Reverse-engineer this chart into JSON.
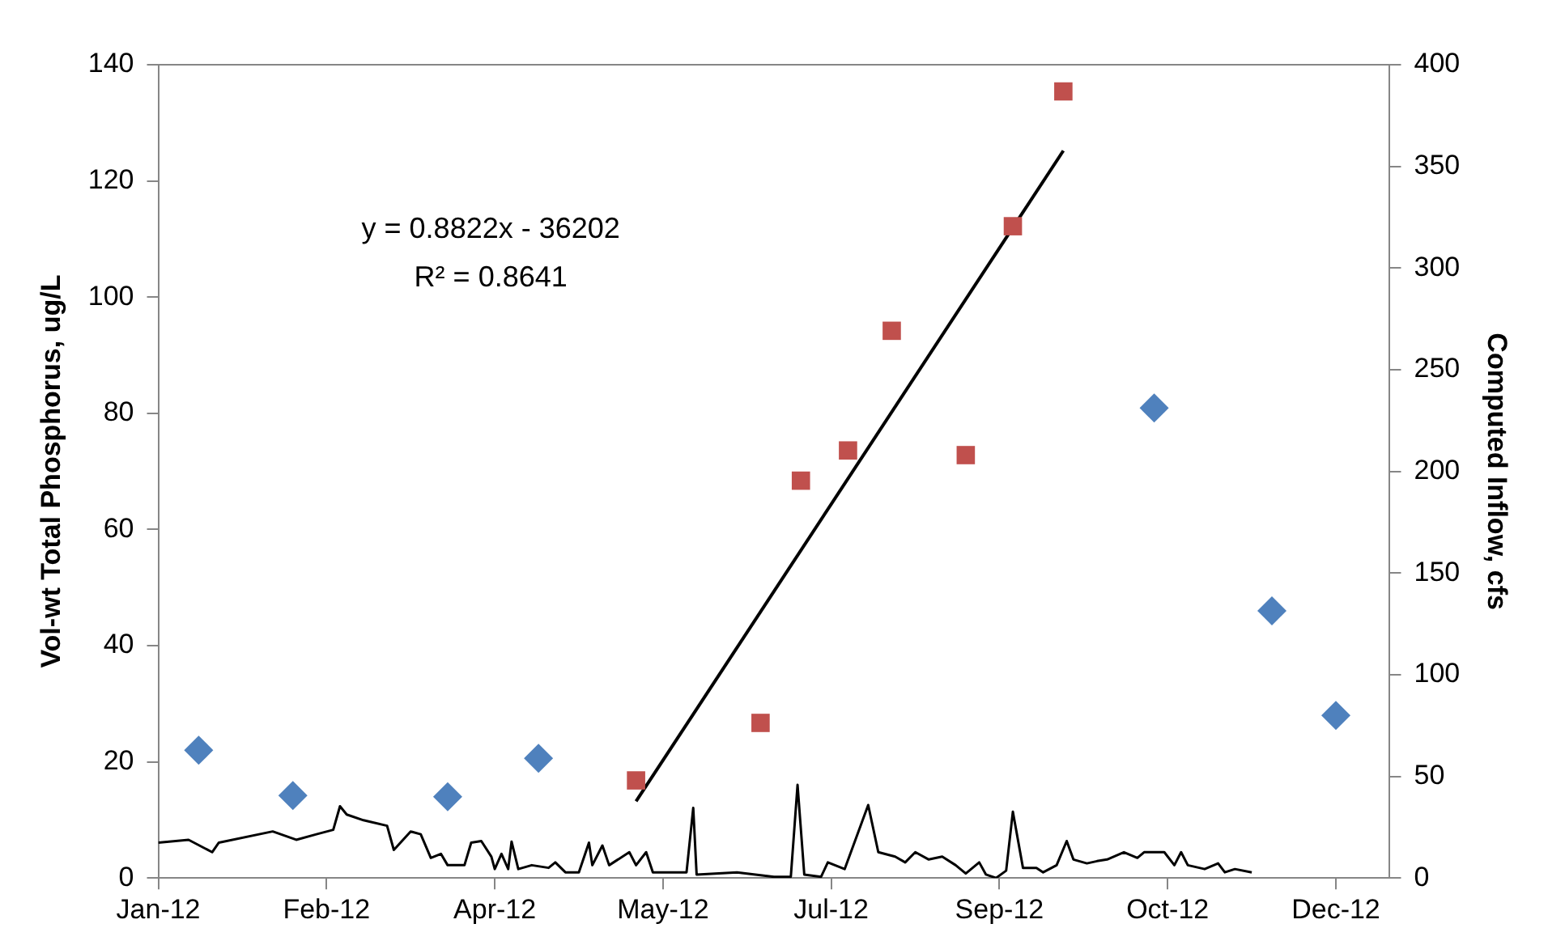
{
  "chart_data": {
    "type": "scatter",
    "xlabel": null,
    "ylabel": "Vol-wt Total Phosphorus, ug/L",
    "y2label": "Computed Inflow, cfs",
    "annotations": [
      "y = 0.8822x - 36202",
      "R² = 0.8641"
    ],
    "xlim": [
      "2012-01-01",
      "2013-01-01"
    ],
    "xticks": [
      {
        "value": "2012-01-01",
        "label": "Jan-12"
      },
      {
        "value": "2012-02-20",
        "label": "Feb-12"
      },
      {
        "value": "2012-04-10",
        "label": "Apr-12"
      },
      {
        "value": "2012-05-30",
        "label": "May-12"
      },
      {
        "value": "2012-07-19",
        "label": "Jul-12"
      },
      {
        "value": "2012-09-07",
        "label": "Sep-12"
      },
      {
        "value": "2012-10-27",
        "label": "Oct-12"
      },
      {
        "value": "2012-12-16",
        "label": "Dec-12"
      }
    ],
    "ylim": [
      0,
      140
    ],
    "yticks": [
      0,
      20,
      40,
      60,
      80,
      100,
      120,
      140
    ],
    "y2lim": [
      0,
      400
    ],
    "y2ticks": [
      0,
      50,
      100,
      150,
      200,
      250,
      300,
      350,
      400
    ],
    "grid": false,
    "legend": false,
    "series": [
      {
        "type": "scatter",
        "marker": "diamond",
        "color": "#4f81bd",
        "x": [
          "2012-01-13",
          "2012-02-10",
          "2012-03-27",
          "2012-04-23",
          "2012-10-23",
          "2012-11-27",
          "2012-12-16"
        ],
        "values": [
          22.0,
          14.2,
          14.0,
          20.6,
          80.9,
          46.0,
          28.0
        ]
      },
      {
        "type": "scatter",
        "marker": "square",
        "color": "#c0504d",
        "x": [
          "2012-05-22",
          "2012-06-28",
          "2012-07-10",
          "2012-07-24",
          "2012-08-06",
          "2012-08-28",
          "2012-09-11",
          "2012-09-26"
        ],
        "values": [
          16.8,
          26.7,
          68.4,
          73.6,
          94.2,
          72.8,
          112.2,
          135.4
        ]
      },
      {
        "type": "line",
        "marker": "none",
        "axis": "y2",
        "color": "#000000",
        "x": [
          "2012-01-01",
          "2012-01-10",
          "2012-01-17",
          "2012-01-19",
          "2012-02-04",
          "2012-02-11",
          "2012-02-17",
          "2012-02-22",
          "2012-02-24",
          "2012-02-26",
          "2012-03-02",
          "2012-03-09",
          "2012-03-11",
          "2012-03-16",
          "2012-03-19",
          "2012-03-22",
          "2012-03-25",
          "2012-03-27",
          "2012-04-01",
          "2012-04-03",
          "2012-04-06",
          "2012-04-09",
          "2012-04-10",
          "2012-04-12",
          "2012-04-14",
          "2012-04-15",
          "2012-04-17",
          "2012-04-21",
          "2012-04-26",
          "2012-04-28",
          "2012-05-01",
          "2012-05-05",
          "2012-05-08",
          "2012-05-09",
          "2012-05-12",
          "2012-05-14",
          "2012-05-20",
          "2012-05-22",
          "2012-05-25",
          "2012-05-27",
          "2012-06-03",
          "2012-06-06",
          "2012-06-08",
          "2012-06-09",
          "2012-06-21",
          "2012-07-02",
          "2012-07-07",
          "2012-07-09",
          "2012-07-11",
          "2012-07-16",
          "2012-07-18",
          "2012-07-23",
          "2012-07-30",
          "2012-08-02",
          "2012-08-07",
          "2012-08-10",
          "2012-08-13",
          "2012-08-17",
          "2012-08-21",
          "2012-08-25",
          "2012-08-28",
          "2012-09-01",
          "2012-09-03",
          "2012-09-06",
          "2012-09-09",
          "2012-09-11",
          "2012-09-14",
          "2012-09-18",
          "2012-09-20",
          "2012-09-24",
          "2012-09-27",
          "2012-09-29",
          "2012-10-03",
          "2012-10-06",
          "2012-10-09",
          "2012-10-14",
          "2012-10-18",
          "2012-10-20",
          "2012-10-26",
          "2012-10-29",
          "2012-10-31",
          "2012-11-02",
          "2012-11-07",
          "2012-11-11",
          "2012-11-13",
          "2012-11-16",
          "2012-11-21"
        ],
        "values": [
          17.4,
          18.8,
          12.7,
          17.4,
          22.9,
          18.8,
          21.5,
          23.7,
          35.3,
          31.2,
          28.4,
          25.7,
          13.8,
          22.9,
          21.5,
          9.9,
          11.9,
          6.3,
          6.3,
          17.4,
          18.2,
          10.5,
          4.4,
          11.9,
          4.4,
          17.9,
          4.4,
          6.3,
          5.0,
          7.7,
          2.8,
          2.8,
          17.4,
          6.3,
          16.0,
          6.3,
          12.7,
          6.3,
          12.7,
          2.8,
          2.8,
          2.8,
          34.5,
          1.7,
          2.8,
          0.6,
          0.6,
          45.8,
          1.7,
          0.6,
          7.7,
          4.4,
          35.9,
          12.7,
          10.5,
          7.7,
          12.7,
          9.1,
          10.5,
          6.3,
          2.2,
          7.7,
          1.7,
          0,
          3.6,
          32.6,
          5.0,
          5.0,
          2.8,
          6.3,
          18.2,
          9.1,
          7.2,
          8.3,
          9.1,
          12.7,
          9.9,
          12.7,
          12.7,
          6.3,
          12.7,
          6.3,
          4.4,
          7.2,
          2.8,
          4.4,
          2.8
        ]
      },
      {
        "type": "line",
        "marker": "none",
        "color": "#000000",
        "x": [
          "2012-05-22",
          "2012-09-26"
        ],
        "values": [
          13.2,
          125.2
        ]
      }
    ]
  }
}
